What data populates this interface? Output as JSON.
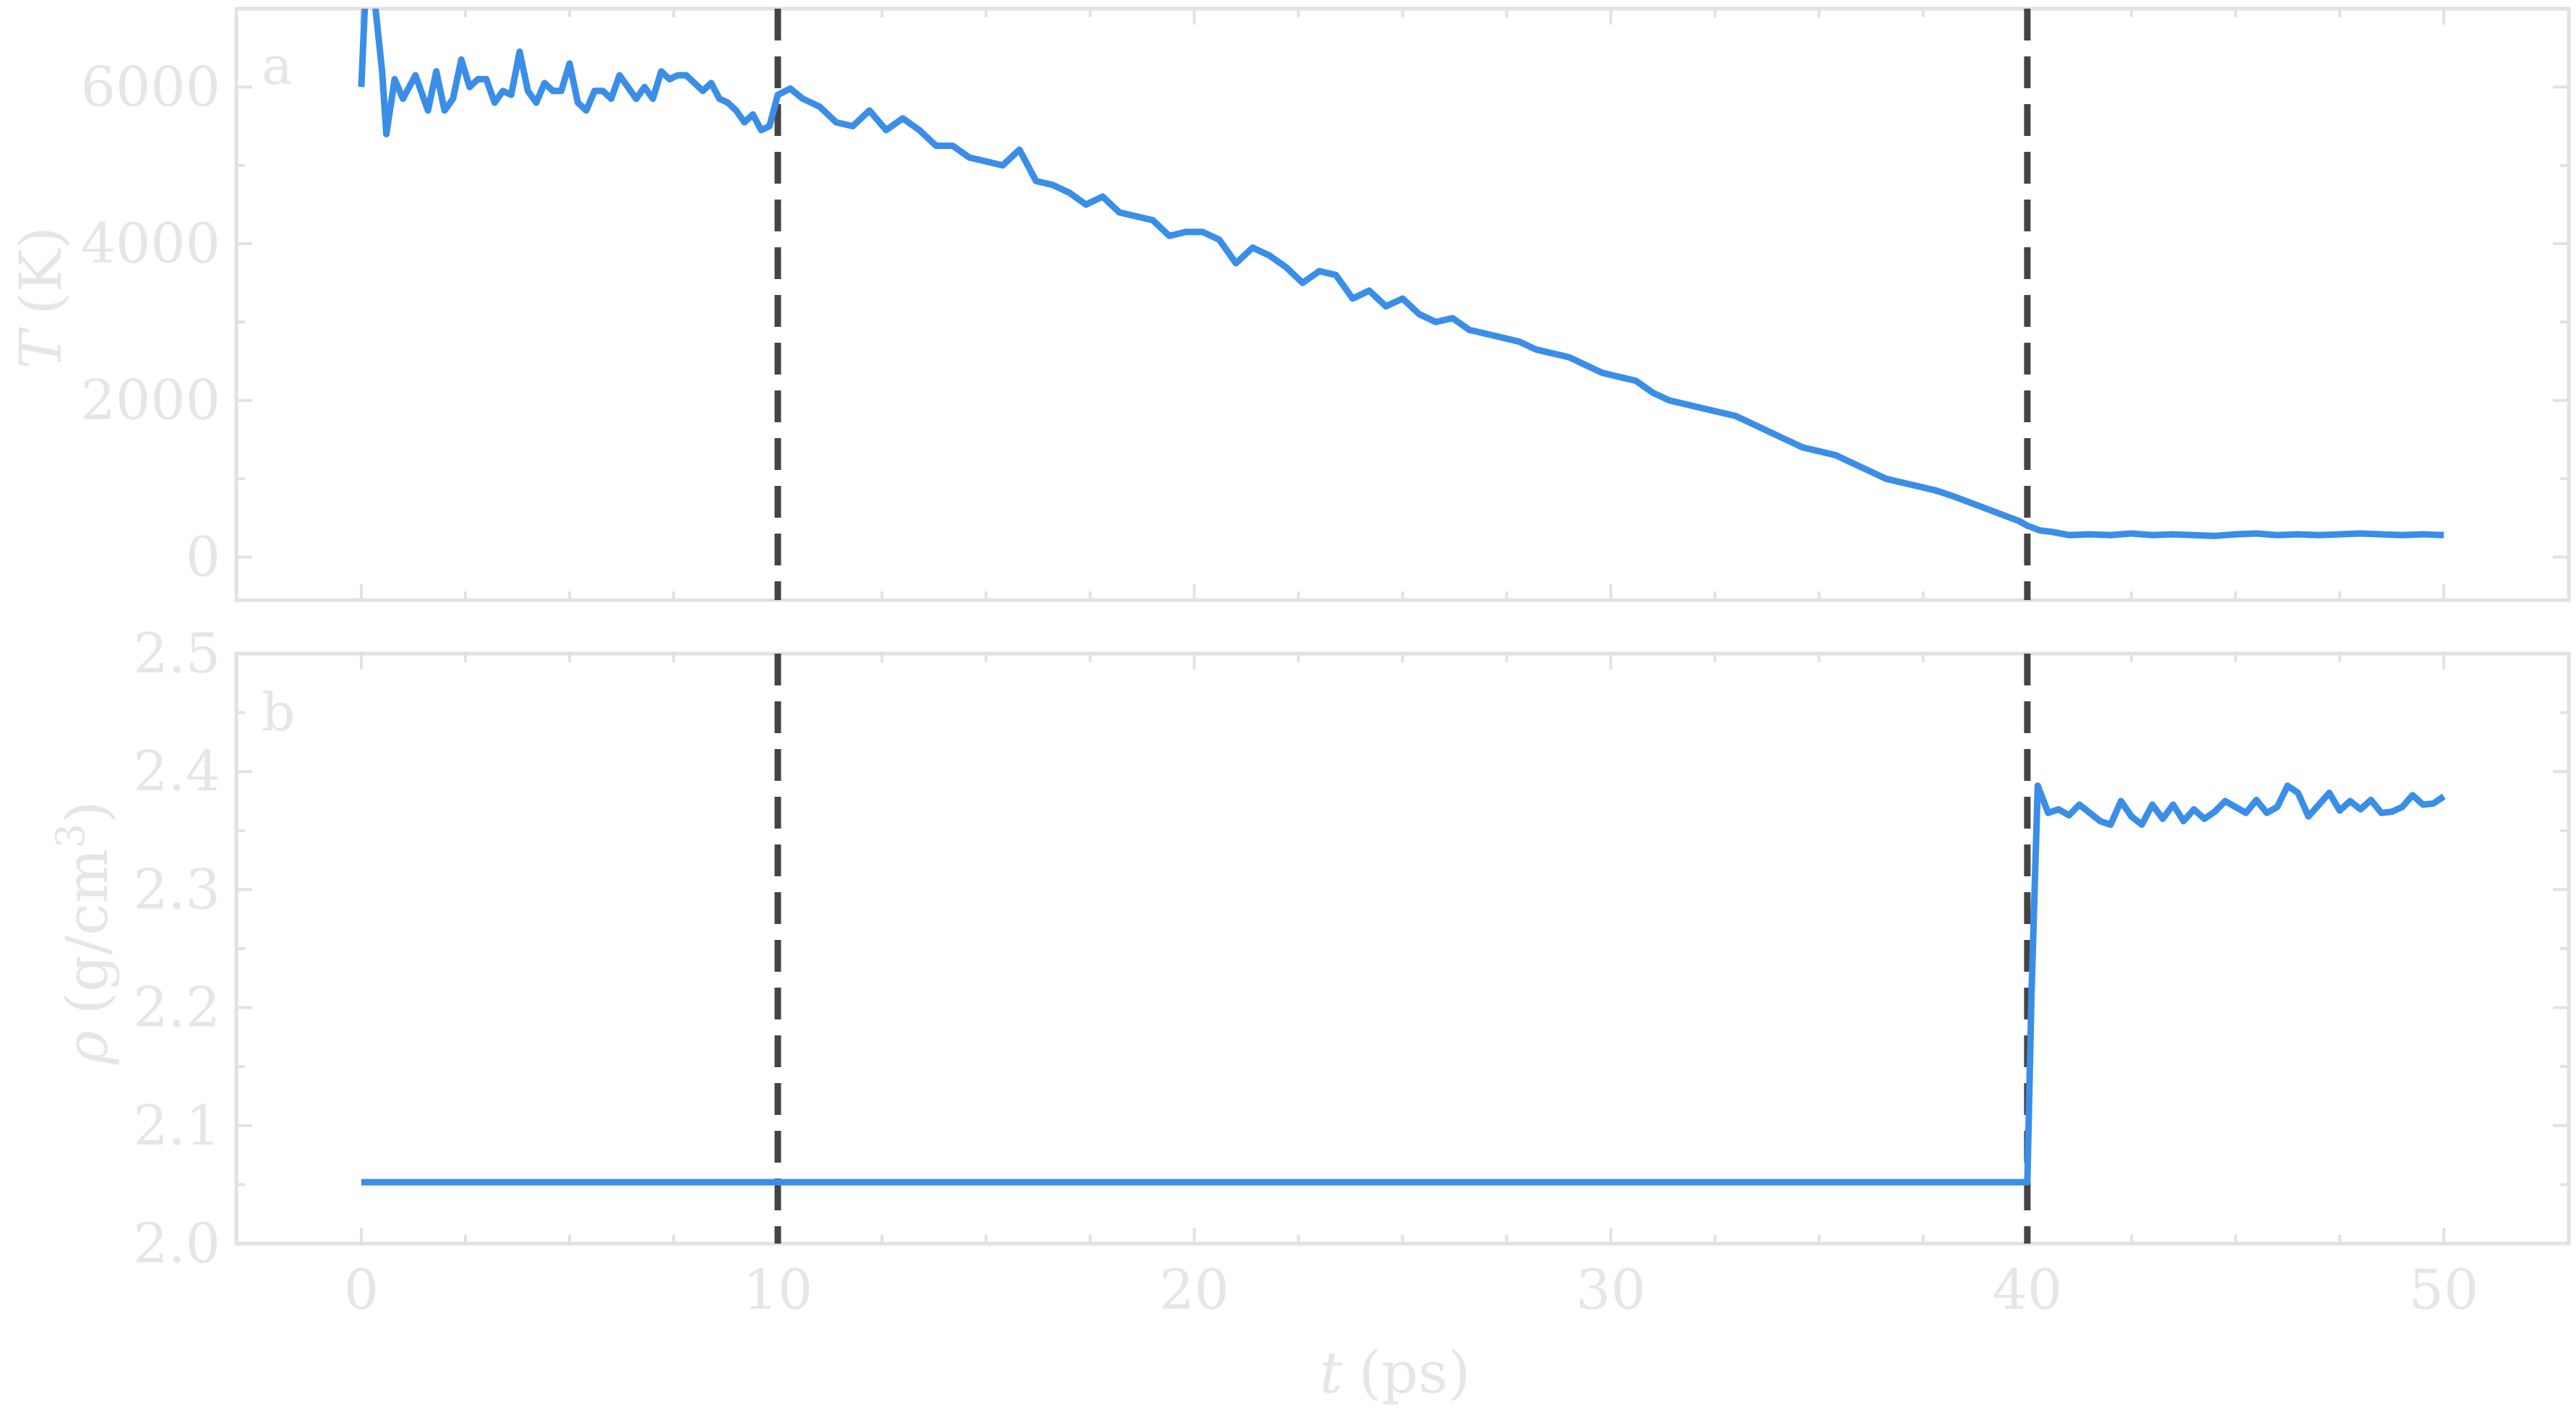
{
  "chart_data": [
    {
      "type": "line",
      "panel_label": "a",
      "ylabel_symbol": "T",
      "ylabel_unit": "(K)",
      "xlim": [
        -3,
        53
      ],
      "ylim": [
        -550,
        7000
      ],
      "yticks": [
        0,
        2000,
        4000,
        6000
      ],
      "ytick_labels": [
        "0",
        "2000",
        "4000",
        "6000"
      ],
      "vlines": [
        10,
        40
      ],
      "series": [
        {
          "color": "#3a8ee8",
          "x": [
            0,
            0.1,
            0.3,
            0.5,
            0.6,
            0.8,
            1.0,
            1.3,
            1.6,
            1.8,
            2.0,
            2.2,
            2.4,
            2.6,
            2.8,
            3.0,
            3.2,
            3.4,
            3.6,
            3.8,
            4.0,
            4.2,
            4.4,
            4.6,
            4.8,
            5.0,
            5.2,
            5.4,
            5.6,
            5.8,
            6.0,
            6.2,
            6.4,
            6.6,
            6.8,
            7.0,
            7.2,
            7.4,
            7.6,
            7.8,
            8.0,
            8.2,
            8.4,
            8.6,
            8.8,
            9.0,
            9.2,
            9.4,
            9.6,
            9.8,
            10.0,
            10.3,
            10.6,
            11.0,
            11.4,
            11.8,
            12.2,
            12.6,
            13.0,
            13.4,
            13.8,
            14.2,
            14.6,
            15.0,
            15.4,
            15.8,
            16.2,
            16.6,
            17.0,
            17.4,
            17.8,
            18.2,
            18.6,
            19.0,
            19.4,
            19.8,
            20.2,
            20.6,
            21.0,
            21.4,
            21.8,
            22.2,
            22.6,
            23.0,
            23.4,
            23.8,
            24.2,
            24.6,
            25.0,
            25.4,
            25.8,
            26.2,
            26.6,
            27.0,
            27.4,
            27.8,
            28.2,
            28.6,
            29.0,
            29.4,
            29.8,
            30.2,
            30.6,
            31.0,
            31.4,
            31.8,
            32.2,
            32.6,
            33.0,
            33.4,
            33.8,
            34.2,
            34.6,
            35.0,
            35.4,
            35.8,
            36.2,
            36.6,
            37.0,
            37.4,
            37.8,
            38.2,
            38.6,
            39.0,
            39.4,
            39.8,
            40.0,
            40.3,
            40.6,
            41.0,
            41.5,
            42.0,
            42.5,
            43.0,
            43.5,
            44.0,
            44.5,
            45.0,
            45.5,
            46.0,
            46.5,
            47.0,
            47.5,
            48.0,
            48.5,
            49.0,
            49.5,
            50.0
          ],
          "y": [
            6000,
            7200,
            7200,
            6200,
            5400,
            6100,
            5850,
            6150,
            5700,
            6200,
            5700,
            5850,
            6350,
            6000,
            6100,
            6100,
            5800,
            5950,
            5900,
            6450,
            5950,
            5800,
            6050,
            5950,
            5950,
            6300,
            5800,
            5700,
            5950,
            5950,
            5850,
            6150,
            6000,
            5850,
            6000,
            5850,
            6200,
            6100,
            6150,
            6150,
            6050,
            5950,
            6050,
            5850,
            5800,
            5700,
            5550,
            5650,
            5450,
            5500,
            5900,
            5980,
            5850,
            5750,
            5550,
            5500,
            5700,
            5450,
            5600,
            5450,
            5250,
            5250,
            5100,
            5050,
            5000,
            5200,
            4800,
            4750,
            4650,
            4500,
            4600,
            4400,
            4350,
            4300,
            4100,
            4150,
            4150,
            4050,
            3750,
            3950,
            3850,
            3700,
            3500,
            3650,
            3600,
            3300,
            3400,
            3200,
            3300,
            3100,
            3000,
            3050,
            2900,
            2850,
            2800,
            2750,
            2650,
            2600,
            2550,
            2450,
            2350,
            2300,
            2250,
            2100,
            2000,
            1950,
            1900,
            1850,
            1800,
            1700,
            1600,
            1500,
            1400,
            1350,
            1300,
            1200,
            1100,
            1000,
            950,
            900,
            850,
            780,
            700,
            620,
            540,
            460,
            400,
            340,
            320,
            280,
            290,
            280,
            300,
            280,
            290,
            280,
            270,
            290,
            300,
            280,
            290,
            280,
            290,
            300,
            290,
            280,
            290,
            280
          ]
        }
      ]
    },
    {
      "type": "line",
      "panel_label": "b",
      "ylabel_symbol": "ρ",
      "ylabel_unit": "(g/cm",
      "ylabel_sup": "3",
      "ylabel_close": ")",
      "xlabel_symbol": "t",
      "xlabel_unit": "(ps)",
      "xlim": [
        -3,
        53
      ],
      "ylim": [
        2.0,
        2.5
      ],
      "xticks": [
        0,
        10,
        20,
        30,
        40,
        50
      ],
      "xtick_labels": [
        "0",
        "10",
        "20",
        "30",
        "40",
        "50"
      ],
      "yticks": [
        2.0,
        2.1,
        2.2,
        2.3,
        2.4,
        2.5
      ],
      "ytick_labels": [
        "2.0",
        "2.1",
        "2.2",
        "2.3",
        "2.4",
        "2.5"
      ],
      "vlines": [
        10,
        40
      ],
      "series": [
        {
          "color": "#3a8ee8",
          "x": [
            0,
            40.0,
            40.1,
            40.25,
            40.5,
            40.75,
            41.0,
            41.25,
            41.5,
            41.75,
            42.0,
            42.25,
            42.5,
            42.75,
            43.0,
            43.25,
            43.5,
            43.75,
            44.0,
            44.25,
            44.5,
            44.75,
            45.0,
            45.25,
            45.5,
            45.75,
            46.0,
            46.25,
            46.5,
            46.75,
            47.0,
            47.25,
            47.5,
            47.75,
            48.0,
            48.25,
            48.5,
            48.75,
            49.0,
            49.25,
            49.5,
            49.75,
            50.0
          ],
          "y": [
            2.052,
            2.052,
            2.21,
            2.388,
            2.365,
            2.368,
            2.363,
            2.372,
            2.365,
            2.358,
            2.355,
            2.375,
            2.362,
            2.355,
            2.372,
            2.36,
            2.372,
            2.358,
            2.368,
            2.36,
            2.366,
            2.375,
            2.37,
            2.365,
            2.376,
            2.365,
            2.37,
            2.388,
            2.382,
            2.362,
            2.372,
            2.382,
            2.367,
            2.375,
            2.368,
            2.376,
            2.365,
            2.366,
            2.37,
            2.38,
            2.372,
            2.373,
            2.379
          ]
        }
      ]
    }
  ]
}
